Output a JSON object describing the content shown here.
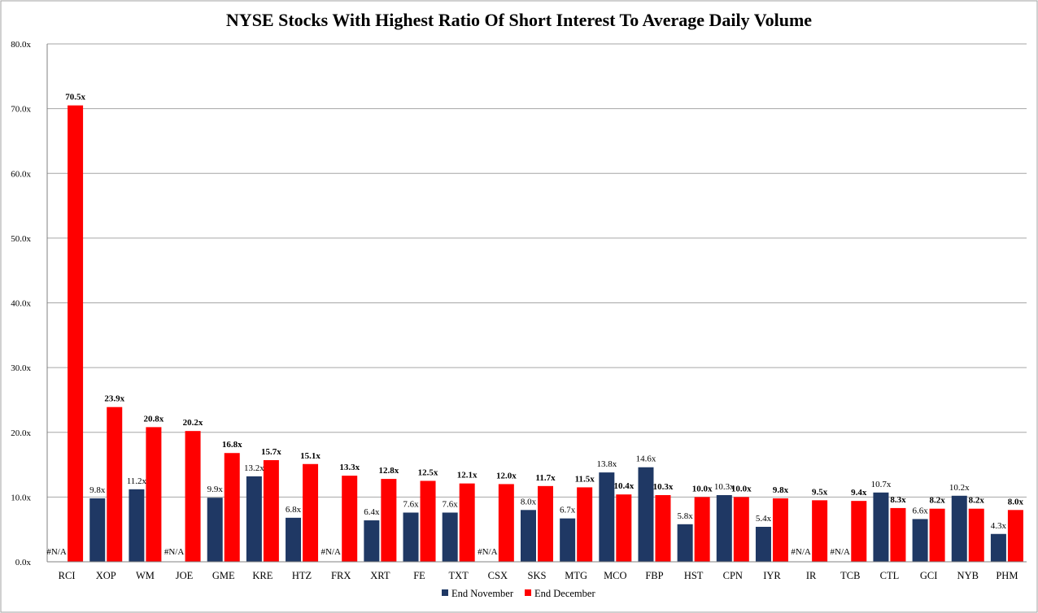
{
  "chart_data": {
    "type": "bar",
    "title": "NYSE Stocks With Highest Ratio Of Short Interest To Average Daily Volume",
    "xlabel": "",
    "ylabel": "",
    "ylim": [
      0,
      80
    ],
    "yticks": [
      "0.0x",
      "10.0x",
      "20.0x",
      "30.0x",
      "40.0x",
      "50.0x",
      "60.0x",
      "70.0x",
      "80.0x"
    ],
    "grid": true,
    "legend_position": "bottom",
    "categories": [
      "RCI",
      "XOP",
      "WM",
      "JOE",
      "GME",
      "KRE",
      "HTZ",
      "FRX",
      "XRT",
      "FE",
      "TXT",
      "CSX",
      "SKS",
      "MTG",
      "MCO",
      "FBP",
      "HST",
      "CPN",
      "IYR",
      "IR",
      "TCB",
      "CTL",
      "GCI",
      "NYB",
      "PHM"
    ],
    "series": [
      {
        "name": "End November",
        "color": "#1f3864",
        "values": [
          null,
          9.8,
          11.2,
          null,
          9.9,
          13.2,
          6.8,
          null,
          6.4,
          7.6,
          7.6,
          null,
          8.0,
          6.7,
          13.8,
          14.6,
          5.8,
          10.3,
          5.4,
          null,
          null,
          10.7,
          6.6,
          10.2,
          4.3
        ],
        "labels": [
          "#N/A",
          "9.8x",
          "11.2x",
          "#N/A",
          "9.9x",
          "13.2x",
          "6.8x",
          "#N/A",
          "6.4x",
          "7.6x",
          "7.6x",
          "#N/A",
          "8.0x",
          "6.7x",
          "13.8x",
          "14.6x",
          "5.8x",
          "10.3x",
          "5.4x",
          "#N/A",
          "#N/A",
          "10.7x",
          "6.6x",
          "10.2x",
          "4.3x"
        ]
      },
      {
        "name": "End December",
        "color": "#ff0000",
        "values": [
          70.5,
          23.9,
          20.8,
          20.2,
          16.8,
          15.7,
          15.1,
          13.3,
          12.8,
          12.5,
          12.1,
          12.0,
          11.7,
          11.5,
          10.4,
          10.3,
          10.0,
          10.0,
          9.8,
          9.5,
          9.4,
          8.3,
          8.2,
          8.2,
          8.0
        ],
        "labels": [
          "70.5x",
          "23.9x",
          "20.8x",
          "20.2x",
          "16.8x",
          "15.7x",
          "15.1x",
          "13.3x",
          "12.8x",
          "12.5x",
          "12.1x",
          "12.0x",
          "11.7x",
          "11.5x",
          "10.4x",
          "10.3x",
          "10.0x",
          "10.0x",
          "9.8x",
          "9.5x",
          "9.4x",
          "8.3x",
          "8.2x",
          "8.2x",
          "8.0x"
        ]
      }
    ]
  }
}
